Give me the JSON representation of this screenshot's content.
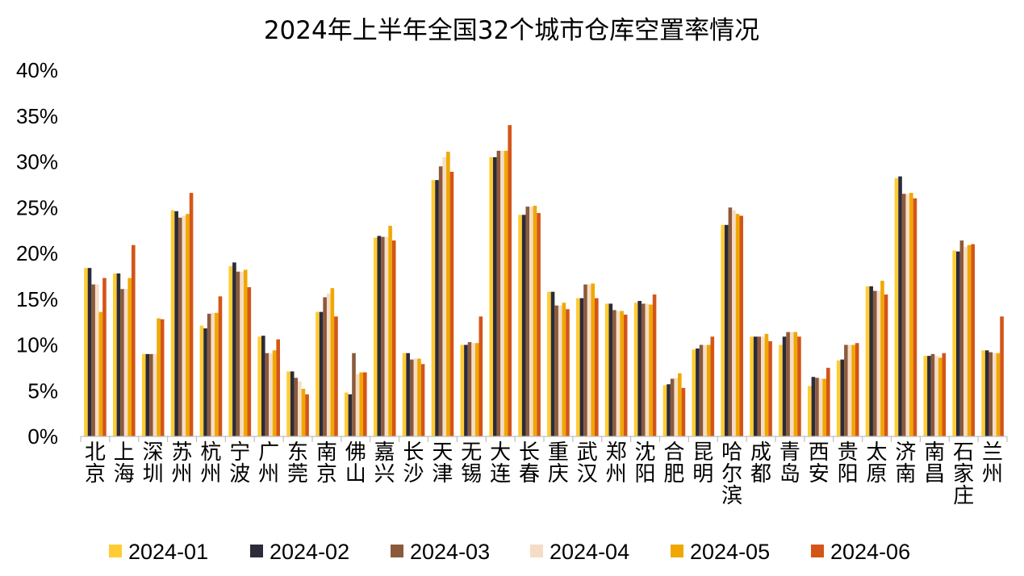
{
  "chart_data": {
    "type": "bar",
    "title": "2024年上半年全国32个城市仓库空置率情况",
    "ylim": [
      0,
      40
    ],
    "ytick_values": [
      0,
      5,
      10,
      15,
      20,
      25,
      30,
      35,
      40
    ],
    "ytick_labels": [
      "0%",
      "5%",
      "10%",
      "15%",
      "20%",
      "25%",
      "30%",
      "35%",
      "40%"
    ],
    "grid": false,
    "legend_position": "bottom",
    "categories": [
      "北京",
      "上海",
      "深圳",
      "苏州",
      "杭州",
      "宁波",
      "广州",
      "东莞",
      "南京",
      "佛山",
      "嘉兴",
      "长沙",
      "天津",
      "无锡",
      "大连",
      "长春",
      "重庆",
      "武汉",
      "郑州",
      "沈阳",
      "合肥",
      "昆明",
      "哈尔滨",
      "成都",
      "青岛",
      "西安",
      "贵阳",
      "太原",
      "济南",
      "南昌",
      "石家庄",
      "兰州"
    ],
    "series": [
      {
        "name": "2024-01",
        "color": "#FFCC33",
        "values": [
          18.4,
          17.8,
          9.0,
          24.7,
          12.1,
          18.6,
          10.9,
          7.1,
          13.6,
          4.8,
          21.7,
          9.1,
          28.0,
          10.0,
          30.5,
          24.2,
          15.8,
          15.1,
          14.5,
          14.6,
          5.6,
          9.5,
          23.1,
          10.9,
          10.0,
          5.5,
          8.3,
          16.4,
          28.2,
          8.8,
          20.3,
          9.4
        ]
      },
      {
        "name": "2024-02",
        "color": "#2B2B3A",
        "values": [
          18.4,
          17.8,
          9.0,
          24.6,
          11.8,
          19.0,
          11.0,
          7.1,
          13.6,
          4.6,
          21.9,
          9.1,
          28.0,
          10.0,
          30.5,
          24.2,
          15.8,
          15.1,
          14.5,
          14.8,
          5.7,
          9.6,
          23.1,
          10.9,
          10.9,
          6.5,
          8.4,
          16.4,
          28.4,
          8.8,
          20.2,
          9.4
        ]
      },
      {
        "name": "2024-03",
        "color": "#8B5A3C",
        "values": [
          16.6,
          16.1,
          9.0,
          23.9,
          13.4,
          18.0,
          9.1,
          6.4,
          15.2,
          9.1,
          21.8,
          8.4,
          29.5,
          10.3,
          31.2,
          25.1,
          14.3,
          16.6,
          13.8,
          14.5,
          6.3,
          10.0,
          25.0,
          10.9,
          11.4,
          6.4,
          10.0,
          15.9,
          26.5,
          9.0,
          21.4,
          9.2
        ]
      },
      {
        "name": "2024-04",
        "color": "#F5DCC5",
        "values": [
          16.6,
          16.1,
          9.0,
          24.1,
          13.5,
          18.0,
          9.1,
          6.0,
          15.6,
          6.8,
          21.8,
          8.5,
          30.5,
          10.2,
          31.2,
          25.1,
          14.3,
          16.6,
          13.7,
          14.5,
          6.4,
          10.0,
          24.7,
          10.9,
          11.4,
          6.3,
          10.0,
          15.9,
          26.5,
          8.8,
          20.7,
          9.1
        ]
      },
      {
        "name": "2024-05",
        "color": "#F0A800",
        "values": [
          13.6,
          17.3,
          12.9,
          24.3,
          13.5,
          18.2,
          9.4,
          5.2,
          16.2,
          7.0,
          23.0,
          8.5,
          31.1,
          10.2,
          31.2,
          25.2,
          14.6,
          16.7,
          13.7,
          14.4,
          6.9,
          10.0,
          24.3,
          11.2,
          11.4,
          6.3,
          10.0,
          17.0,
          26.6,
          8.6,
          20.9,
          9.1
        ]
      },
      {
        "name": "2024-06",
        "color": "#D45519",
        "values": [
          17.3,
          20.9,
          12.8,
          26.6,
          15.3,
          16.3,
          10.6,
          4.6,
          13.1,
          7.0,
          21.4,
          7.9,
          28.9,
          13.1,
          34.0,
          24.4,
          13.9,
          15.1,
          13.3,
          15.5,
          5.3,
          10.9,
          24.1,
          10.4,
          10.9,
          7.5,
          10.2,
          15.5,
          26.0,
          9.1,
          21.0,
          13.1
        ]
      }
    ]
  }
}
